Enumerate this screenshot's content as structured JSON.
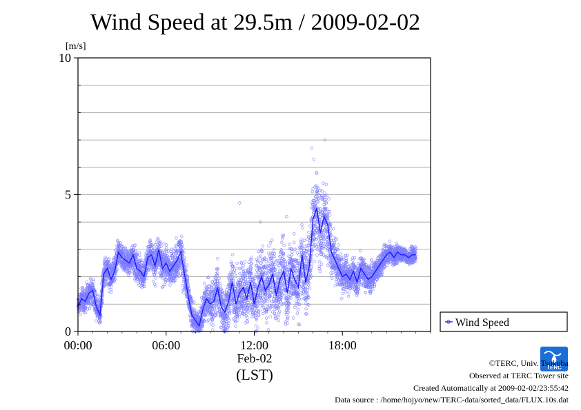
{
  "chart_data": {
    "type": "scatter",
    "title": "Wind Speed at 29.5m / 2009-02-02",
    "y_unit": "[m/s]",
    "ylim": [
      0,
      10
    ],
    "y_ticks": [
      0,
      5,
      10
    ],
    "y_tick_labels": [
      "0",
      "5",
      "10"
    ],
    "x_unit": "hours",
    "xlim": [
      0,
      24
    ],
    "x_ticks": [
      0,
      6,
      12,
      18
    ],
    "x_tick_labels": [
      "00:00",
      "06:00",
      "12:00",
      "18:00"
    ],
    "x_date_label": "Feb-02",
    "x_zone_label": "(LST)",
    "grid": true,
    "legend": {
      "position": "right",
      "entries": [
        "Wind Speed"
      ]
    },
    "series": [
      {
        "name": "Wind Speed",
        "color": "#1a1aff",
        "mean_x": [
          0,
          0.25,
          0.5,
          0.75,
          1,
          1.25,
          1.5,
          1.75,
          2,
          2.25,
          2.5,
          2.75,
          3,
          3.25,
          3.5,
          3.75,
          4,
          4.25,
          4.5,
          4.75,
          5,
          5.25,
          5.5,
          5.75,
          6,
          6.25,
          6.5,
          6.75,
          7,
          7.25,
          7.5,
          7.75,
          8,
          8.25,
          8.5,
          8.75,
          9,
          9.25,
          9.5,
          9.75,
          10,
          10.25,
          10.5,
          10.75,
          11,
          11.25,
          11.5,
          11.75,
          12,
          12.25,
          12.5,
          12.75,
          13,
          13.25,
          13.5,
          13.75,
          14,
          14.25,
          14.5,
          14.75,
          15,
          15.25,
          15.5,
          15.75,
          16,
          16.25,
          16.5,
          16.75,
          17,
          17.25,
          17.5,
          17.75,
          18,
          18.25,
          18.5,
          18.75,
          19,
          19.25,
          19.5,
          19.75,
          20,
          20.25,
          20.5,
          20.75,
          21,
          21.25,
          21.5,
          21.75,
          22,
          22.25,
          22.5,
          22.75,
          23
        ],
        "mean_y": [
          0.9,
          1.2,
          1.1,
          1.4,
          1.5,
          0.9,
          0.6,
          2.1,
          2.3,
          1.9,
          2.2,
          2.9,
          2.7,
          2.6,
          2.5,
          2.8,
          2.3,
          2.2,
          2.0,
          2.7,
          2.8,
          2.4,
          3.0,
          2.3,
          2.5,
          2.2,
          2.4,
          2.6,
          2.9,
          2.1,
          1.3,
          0.6,
          0.4,
          0.2,
          0.8,
          1.2,
          1.0,
          1.1,
          1.6,
          0.9,
          0.7,
          1.1,
          1.8,
          1.0,
          1.4,
          1.6,
          1.2,
          1.8,
          1.0,
          1.6,
          2.0,
          1.5,
          1.7,
          2.1,
          1.3,
          1.9,
          2.2,
          1.4,
          2.3,
          1.9,
          1.6,
          2.8,
          1.8,
          2.4,
          4.1,
          4.5,
          3.6,
          4.2,
          3.9,
          2.9,
          2.6,
          2.3,
          2.0,
          2.1,
          1.9,
          2.2,
          1.8,
          2.3,
          2.1,
          1.9,
          2.0,
          2.2,
          2.4,
          2.6,
          2.8,
          2.9,
          2.7,
          2.9,
          2.8,
          2.8,
          2.7,
          2.8,
          2.8
        ],
        "point_spread": [
          0.4,
          0.5,
          0.5,
          0.5,
          0.5,
          0.5,
          0.5,
          0.6,
          0.6,
          0.6,
          0.6,
          0.5,
          0.5,
          0.5,
          0.5,
          0.6,
          0.6,
          0.6,
          0.6,
          0.6,
          0.7,
          0.7,
          0.7,
          0.7,
          0.7,
          0.7,
          0.7,
          0.8,
          0.8,
          0.8,
          0.7,
          0.6,
          0.5,
          0.5,
          0.7,
          0.8,
          0.9,
          0.9,
          1.0,
          1.0,
          1.0,
          1.1,
          1.1,
          1.1,
          1.2,
          1.2,
          1.2,
          1.2,
          1.2,
          1.3,
          1.3,
          1.3,
          1.3,
          1.3,
          1.3,
          1.4,
          1.4,
          1.4,
          1.4,
          1.4,
          1.4,
          1.4,
          1.4,
          1.4,
          1.6,
          1.7,
          1.5,
          1.4,
          1.3,
          1.0,
          0.9,
          0.8,
          0.7,
          0.7,
          0.6,
          0.6,
          0.6,
          0.6,
          0.6,
          0.6,
          0.6,
          0.5,
          0.5,
          0.5,
          0.4,
          0.4,
          0.4,
          0.4,
          0.3,
          0.3,
          0.3,
          0.3,
          0.3
        ],
        "peak_points": [
          [
            15.9,
            6.7
          ],
          [
            16.05,
            6.3
          ],
          [
            16.8,
            7.0
          ],
          [
            11.0,
            4.7
          ],
          [
            12.4,
            4.0
          ],
          [
            14.2,
            4.2
          ]
        ]
      }
    ]
  },
  "footer": {
    "copyright": "©TERC, Univ. Tsukuba",
    "observed": "Observed at TERC Tower site",
    "created": "Created Automatically at 2009-02-02/23:55:42",
    "source": "Data source : /home/hojyo/new/TERC-data/sorted_data/FLUX.10s.dat"
  },
  "logo": {
    "text": "TERC",
    "color": "#1a6ed8"
  }
}
